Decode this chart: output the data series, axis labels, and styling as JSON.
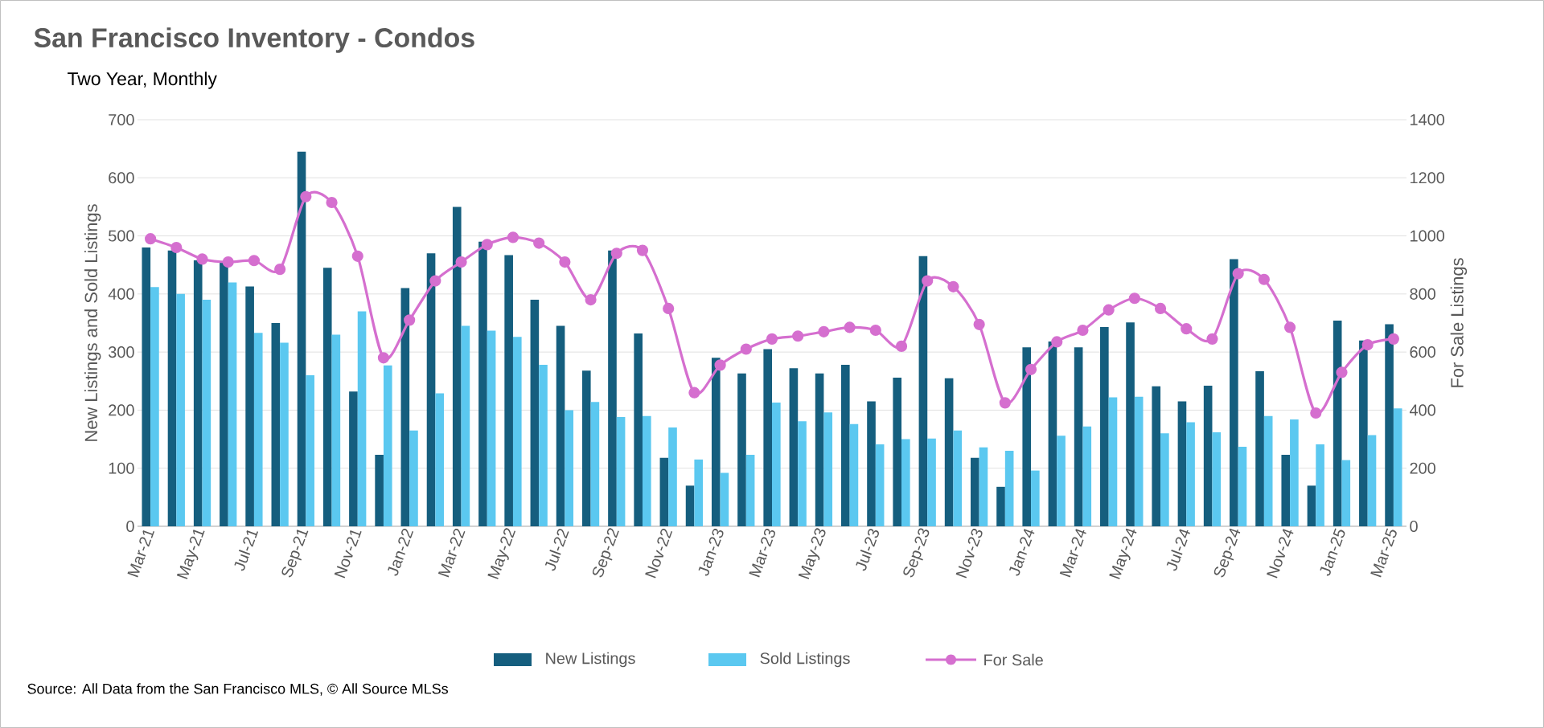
{
  "chart_data": {
    "type": "bar",
    "title": "San Francisco Inventory - Condos",
    "subtitle": "Two Year, Monthly",
    "ylabel": "New Listings and Sold Listings",
    "y2label": "For Sale Listings",
    "annotations": [
      "Source: All Data from the San Francisco MLS, © All Source MLSs"
    ],
    "categories": [
      "Mar-21",
      null,
      "May-21",
      null,
      "Jul-21",
      null,
      "Sep-21",
      null,
      "Nov-21",
      null,
      "Jan-22",
      null,
      "Mar-22",
      null,
      "May-22",
      null,
      "Jul-22",
      null,
      "Sep-22",
      null,
      "Nov-22",
      null,
      "Jan-23",
      null,
      "Mar-23",
      null,
      "May-23",
      null,
      "Jul-23",
      null,
      "Sep-23",
      null,
      "Nov-23",
      null,
      "Jan-24",
      null,
      "Mar-24",
      null,
      "May-24",
      null,
      "Jul-24",
      null,
      "Sep-24",
      null,
      "Nov-24",
      null,
      "Jan-25",
      null,
      "Mar-25"
    ],
    "series": [
      {
        "name": "New Listings",
        "color": "#155e7e",
        "values": [
          480,
          475,
          458,
          455,
          413,
          350,
          645,
          445,
          232,
          123,
          410,
          470,
          550,
          490,
          467,
          390,
          345,
          268,
          475,
          332,
          118,
          70,
          290,
          263,
          305,
          272,
          263,
          278,
          215,
          256,
          465,
          255,
          118,
          68,
          308,
          318,
          308,
          343,
          351,
          241,
          215,
          242,
          460,
          267,
          123,
          70,
          354,
          320,
          348
        ]
      },
      {
        "name": "Sold Listings",
        "color": "#5bc8f0",
        "values": [
          412,
          400,
          390,
          420,
          333,
          316,
          260,
          330,
          370,
          277,
          165,
          229,
          345,
          337,
          326,
          278,
          200,
          214,
          188,
          190,
          170,
          115,
          92,
          123,
          213,
          181,
          196,
          176,
          141,
          150,
          151,
          165,
          136,
          130,
          96,
          156,
          172,
          222,
          223,
          160,
          179,
          162,
          137,
          190,
          184,
          141,
          114,
          157,
          203
        ]
      },
      {
        "name": "For Sale",
        "type": "line",
        "axis": "y2",
        "marker": "circle",
        "color": "#d56fcf",
        "values": [
          990,
          960,
          920,
          910,
          915,
          885,
          1135,
          1115,
          930,
          580,
          710,
          845,
          910,
          970,
          995,
          975,
          910,
          780,
          940,
          950,
          750,
          460,
          555,
          610,
          645,
          655,
          670,
          685,
          675,
          620,
          845,
          825,
          695,
          425,
          540,
          635,
          675,
          745,
          785,
          750,
          680,
          645,
          870,
          850,
          685,
          390,
          530,
          625,
          645
        ]
      }
    ],
    "ylim": [
      0,
      700
    ],
    "yticks": [
      0,
      100,
      200,
      300,
      400,
      500,
      600,
      700
    ],
    "y2lim": [
      0,
      1400
    ],
    "y2ticks": [
      0,
      200,
      400,
      600,
      800,
      1000,
      1200,
      1400
    ],
    "grid": "y",
    "legend": "bottom"
  }
}
